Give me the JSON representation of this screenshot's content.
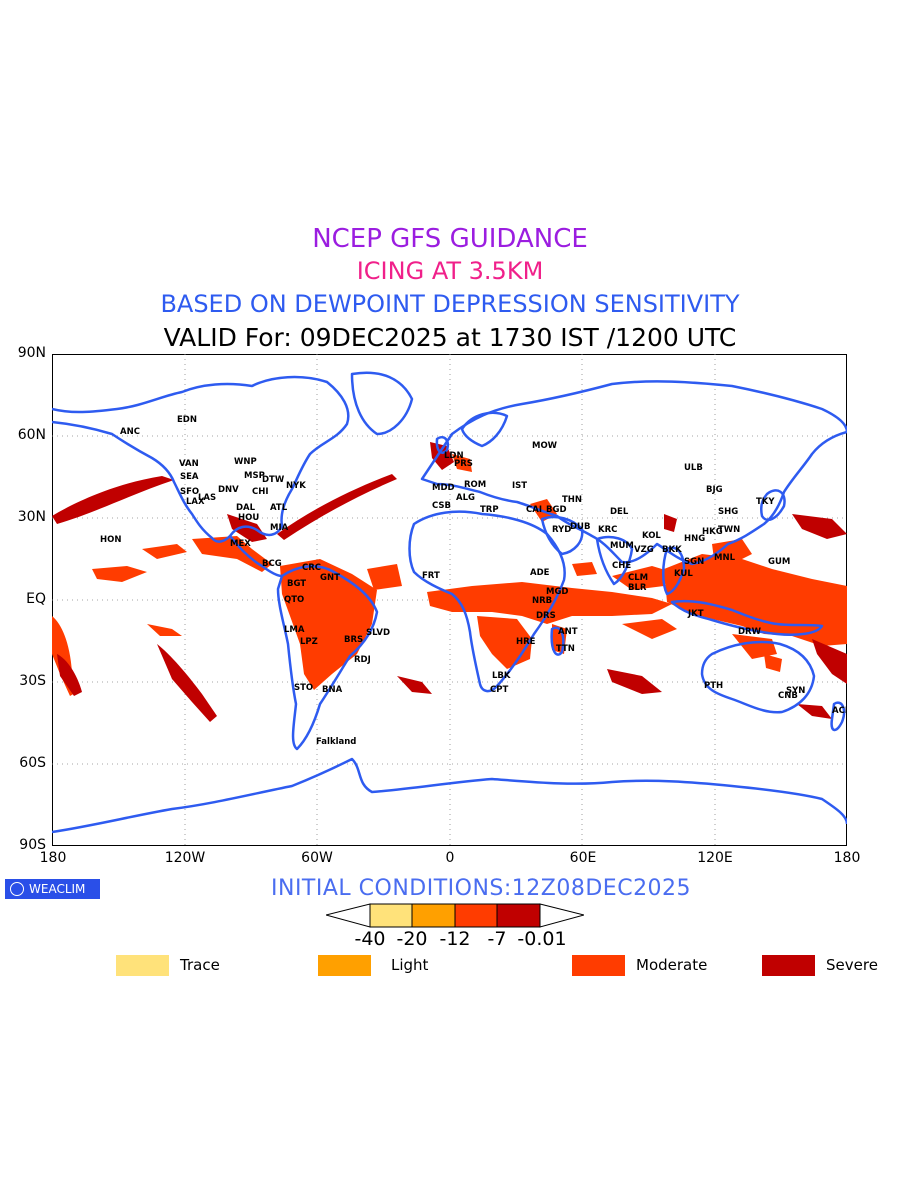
{
  "titles": {
    "line1": "NCEP GFS GUIDANCE",
    "line2": "ICING AT 3.5KM",
    "line3": "BASED ON DEWPOINT DEPRESSION SENSITIVITY",
    "line4": "VALID For: 09DEC2025 at 1730 IST /1200 UTC",
    "line1_color": "#9b1de0",
    "line2_color": "#f0208a",
    "line3_color": "#2e5bf0"
  },
  "axes": {
    "lat_labels": [
      "90N",
      "60N",
      "30N",
      "EQ",
      "30S",
      "60S",
      "90S"
    ],
    "lon_labels": [
      "180",
      "120W",
      "60W",
      "0",
      "60E",
      "120E",
      "180"
    ],
    "grid": "dotted",
    "projection": "cylindrical equidistant"
  },
  "map": {
    "coastline_color": "#2e5bf0",
    "stations": [
      "ANC",
      "EDN",
      "VAN",
      "WNP",
      "SEA",
      "MSP",
      "DTW",
      "NYK",
      "SFO",
      "CHI",
      "DNV",
      "LAX",
      "LAS",
      "DAL",
      "ATL",
      "HOU",
      "MIA",
      "HON",
      "MEX",
      "BCG",
      "CRC",
      "BGT",
      "GNT",
      "QTO",
      "LMA",
      "LPZ",
      "BRS",
      "SLVD",
      "RDJ",
      "STO",
      "BNA",
      "Falkland",
      "LDN",
      "PRS",
      "MDD",
      "CSB",
      "ROM",
      "ALG",
      "TRP",
      "IST",
      "MOW",
      "CAI",
      "BGD",
      "THN",
      "RYD",
      "DUB",
      "KRC",
      "DEL",
      "MUM",
      "CHE",
      "KOL",
      "BLR",
      "CLM",
      "VZG",
      "BKK",
      "SGN",
      "KUL",
      "HNG",
      "MNL",
      "HKG",
      "TWN",
      "SHG",
      "BJG",
      "ULB",
      "TKY",
      "GUM",
      "JKT",
      "DRW",
      "PTH",
      "SYN",
      "CNB",
      "ACLT",
      "FRT",
      "ADE",
      "MGD",
      "NRB",
      "DRS",
      "ANT",
      "LBK",
      "CPT",
      "HRE",
      "TTN"
    ],
    "station_label_color": "#000000"
  },
  "initial_conditions": "INITIAL CONDITIONS:12Z08DEC2025",
  "badge": "WEACLIM",
  "colorbar": {
    "ticks": [
      "-40",
      "-20",
      "-12",
      "-7",
      "-0.01"
    ],
    "colors": [
      "#ffe27a",
      "#ffa000",
      "#ff3c00",
      "#c00000"
    ]
  },
  "legend": [
    {
      "label": "Trace",
      "color": "#ffe27a"
    },
    {
      "label": "Light",
      "color": "#ffa000"
    },
    {
      "label": "Moderate",
      "color": "#ff3c00"
    },
    {
      "label": "Severe",
      "color": "#c00000"
    }
  ]
}
